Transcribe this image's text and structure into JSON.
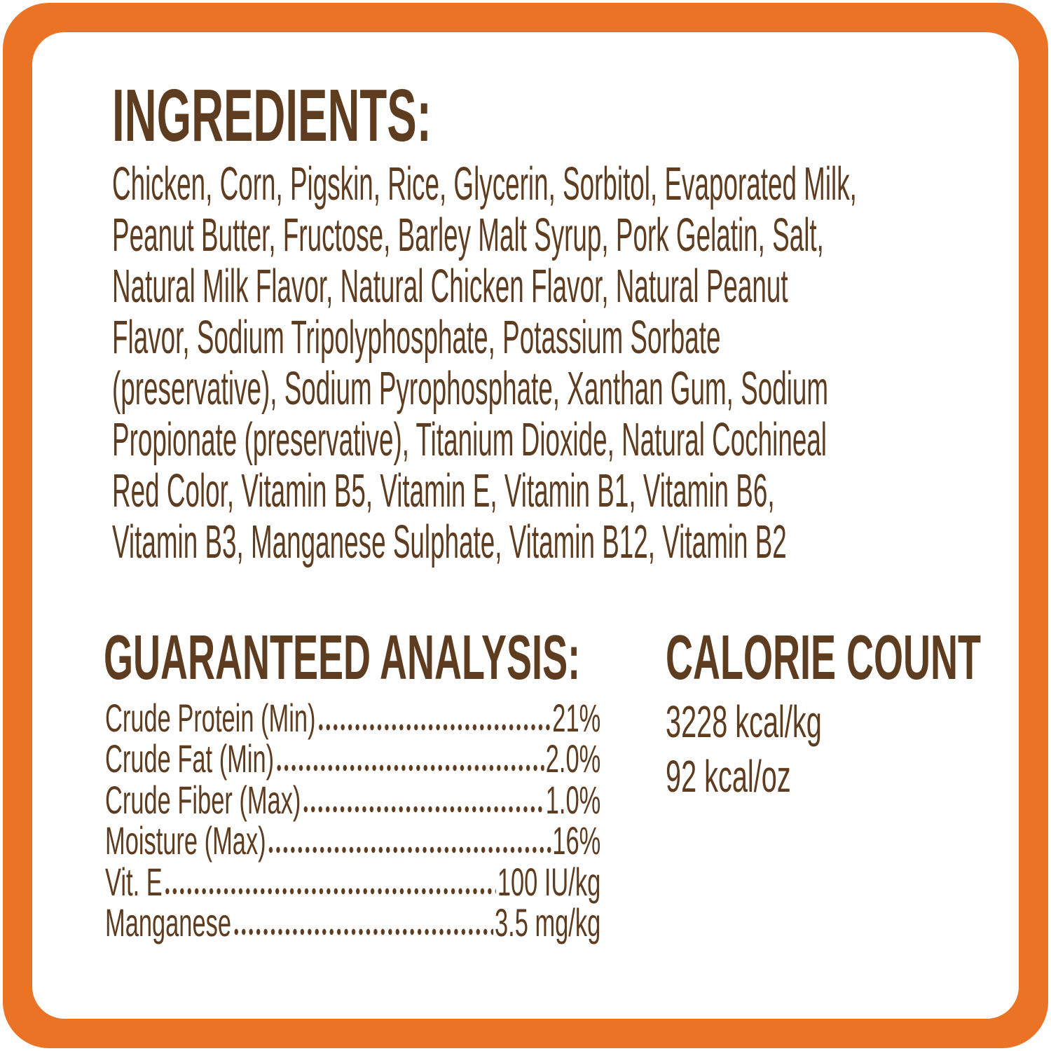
{
  "label": {
    "border_color": "#EB7326",
    "text_color": "#5E3C20",
    "background_color": "#FFFFFF"
  },
  "ingredients": {
    "title": "INGREDIENTS:",
    "text": "Chicken, Corn, Pigskin, Rice, Glycerin, Sorbitol, Evaporated Milk,\nPeanut Butter, Fructose, Barley Malt Syrup, Pork Gelatin, Salt,\nNatural Milk Flavor, Natural Chicken Flavor, Natural Peanut\nFlavor, Sodium Tripolyphosphate, Potassium Sorbate\n(preservative), Sodium Pyrophosphate, Xanthan Gum, Sodium\nPropionate (preservative), Titanium Dioxide, Natural Cochineal\nRed Color, Vitamin B5, Vitamin E, Vitamin B1, Vitamin B6,\nVitamin B3, Manganese Sulphate, Vitamin B12, Vitamin B2"
  },
  "analysis": {
    "title": "GUARANTEED ANALYSIS:",
    "rows": [
      {
        "label": "Crude Protein (Min)",
        "value": "21%"
      },
      {
        "label": "Crude Fat (Min)",
        "value": "2.0%"
      },
      {
        "label": "Crude Fiber (Max)",
        "value": "1.0%"
      },
      {
        "label": "Moisture (Max)",
        "value": "16%"
      },
      {
        "label": "Vit. E",
        "value": "100 IU/kg"
      },
      {
        "label": "Manganese",
        "value": "3.5 mg/kg"
      }
    ]
  },
  "calories": {
    "title": "CALORIE COUNT",
    "per_kg": "3228 kcal/kg",
    "per_oz": "92 kcal/oz"
  }
}
